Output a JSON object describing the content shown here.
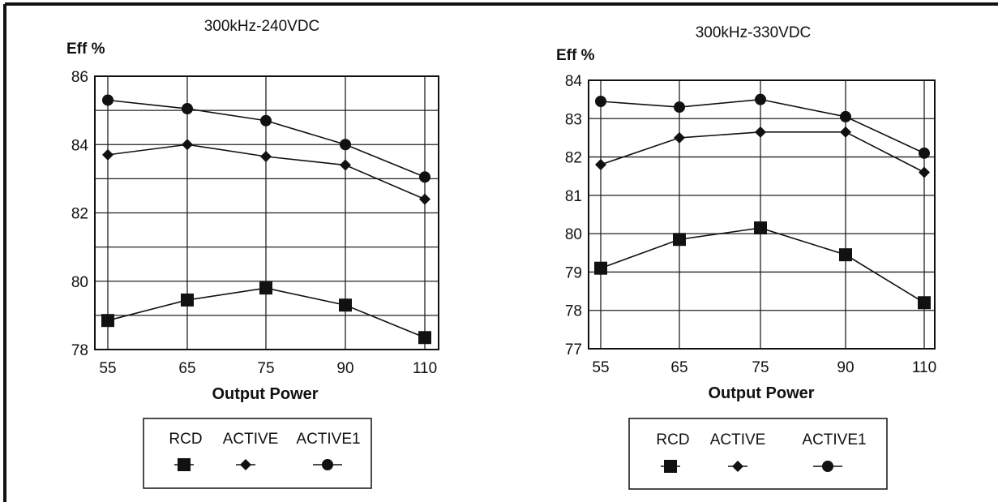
{
  "chart_data": [
    {
      "type": "line",
      "title": "300kHz-240VDC",
      "ylabel": "Eff %",
      "xlabel": "Output Power",
      "categories": [
        "55",
        "65",
        "75",
        "90",
        "110"
      ],
      "ylim": [
        78,
        86
      ],
      "yticks": [
        "78",
        "80",
        "82",
        "84",
        "86"
      ],
      "ygrid_step": 1,
      "grid": true,
      "legend_position": "bottom",
      "series": [
        {
          "name": "RCD",
          "marker": "square",
          "values": [
            78.85,
            79.45,
            79.8,
            79.3,
            78.35
          ]
        },
        {
          "name": "ACTIVE",
          "marker": "diamond",
          "values": [
            83.7,
            84.0,
            83.65,
            83.4,
            82.4
          ]
        },
        {
          "name": "ACTIVE1",
          "marker": "circle",
          "values": [
            85.3,
            85.05,
            84.7,
            84.0,
            83.05
          ]
        }
      ]
    },
    {
      "type": "line",
      "title": "300kHz-330VDC",
      "ylabel": "Eff %",
      "xlabel": "Output Power",
      "categories": [
        "55",
        "65",
        "75",
        "90",
        "110"
      ],
      "ylim": [
        77,
        84
      ],
      "yticks": [
        "77",
        "78",
        "79",
        "80",
        "81",
        "82",
        "83",
        "84"
      ],
      "ygrid_step": 1,
      "grid": true,
      "legend_position": "bottom",
      "series": [
        {
          "name": "RCD",
          "marker": "square",
          "values": [
            79.1,
            79.85,
            80.15,
            79.45,
            78.2
          ]
        },
        {
          "name": "ACTIVE",
          "marker": "diamond",
          "values": [
            81.8,
            82.5,
            82.65,
            82.65,
            81.6
          ]
        },
        {
          "name": "ACTIVE1",
          "marker": "circle",
          "values": [
            83.45,
            83.3,
            83.5,
            83.05,
            82.1
          ]
        }
      ]
    }
  ]
}
